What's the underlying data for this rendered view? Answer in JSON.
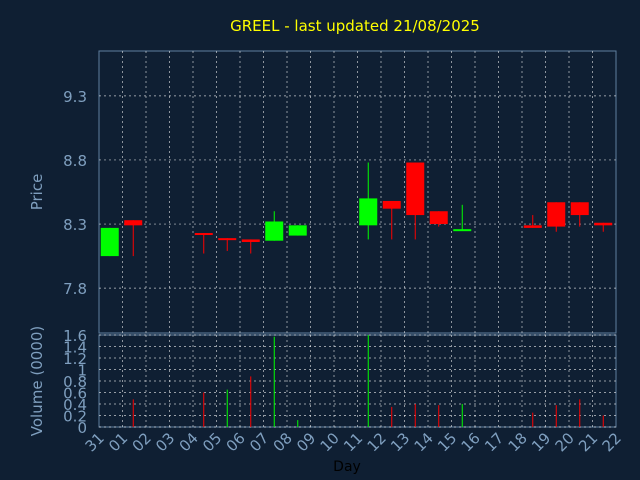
{
  "title": "GREEL - last updated 21/08/2025",
  "colors": {
    "background": "#0f1f33",
    "axis_text": "#7f9fbf",
    "title": "#ffff00",
    "up": "#00ff00",
    "down": "#ff0000",
    "grid": "#ffffff",
    "frame": "#5f7f9f"
  },
  "chart_data": [
    {
      "type": "candlestick",
      "ylabel": "Price",
      "ylim": [
        7.45,
        9.65
      ],
      "yticks": [
        7.8,
        8.3,
        8.8,
        9.3
      ],
      "ytick_labels": [
        "7.8",
        "8.3",
        "8.8",
        "9.3"
      ],
      "grid": true,
      "x_index": [
        0,
        1,
        2,
        3,
        4,
        5,
        6,
        7,
        8,
        9,
        10,
        11,
        12,
        13,
        14,
        15,
        16,
        17,
        18,
        19,
        20,
        21,
        22
      ],
      "candles": [
        {
          "x": 0,
          "open": 8.05,
          "close": 8.27,
          "high": 8.27,
          "low": 8.05
        },
        {
          "x": 1,
          "open": 8.33,
          "close": 8.29,
          "high": 8.33,
          "low": 8.05
        },
        {
          "x": 4,
          "open": 8.23,
          "close": 8.22,
          "high": 8.23,
          "low": 8.07
        },
        {
          "x": 5,
          "open": 8.19,
          "close": 8.18,
          "high": 8.19,
          "low": 8.09
        },
        {
          "x": 6,
          "open": 8.18,
          "close": 8.16,
          "high": 8.18,
          "low": 8.07
        },
        {
          "x": 7,
          "open": 8.17,
          "close": 8.32,
          "high": 8.4,
          "low": 8.17
        },
        {
          "x": 8,
          "open": 8.21,
          "close": 8.29,
          "high": 8.29,
          "low": 8.21
        },
        {
          "x": 11,
          "open": 8.29,
          "close": 8.5,
          "high": 8.78,
          "low": 8.18
        },
        {
          "x": 12,
          "open": 8.48,
          "close": 8.42,
          "high": 8.48,
          "low": 8.18
        },
        {
          "x": 13,
          "open": 8.78,
          "close": 8.37,
          "high": 8.78,
          "low": 8.18
        },
        {
          "x": 14,
          "open": 8.4,
          "close": 8.3,
          "high": 8.4,
          "low": 8.28
        },
        {
          "x": 15,
          "open": 8.25,
          "close": 8.26,
          "high": 8.45,
          "low": 8.25
        },
        {
          "x": 18,
          "open": 8.29,
          "close": 8.27,
          "high": 8.37,
          "low": 8.27
        },
        {
          "x": 19,
          "open": 8.47,
          "close": 8.28,
          "high": 8.47,
          "low": 8.24
        },
        {
          "x": 20,
          "open": 8.47,
          "close": 8.37,
          "high": 8.47,
          "low": 8.28
        },
        {
          "x": 21,
          "open": 8.31,
          "close": 8.29,
          "high": 8.31,
          "low": 8.24
        }
      ]
    },
    {
      "type": "bar",
      "xlabel": "Day",
      "ylabel": "Volume (0000)",
      "ylim": [
        0,
        1.6
      ],
      "yticks": [
        0,
        0.2,
        0.4,
        0.6,
        0.8,
        1,
        1.2,
        1.4,
        1.6
      ],
      "ytick_labels": [
        "0",
        "0.2",
        "0.4",
        "0.6",
        "0.8",
        "1",
        "1.2",
        "1.4",
        "1.6"
      ],
      "grid": true,
      "categories": [
        "31",
        "01",
        "02",
        "03",
        "04",
        "05",
        "06",
        "07",
        "08",
        "09",
        "10",
        "11",
        "12",
        "13",
        "14",
        "15",
        "16",
        "17",
        "18",
        "19",
        "20",
        "21",
        "22"
      ],
      "bars": [
        {
          "x": 1,
          "value": 0.48,
          "direction": "down"
        },
        {
          "x": 4,
          "value": 0.6,
          "direction": "down"
        },
        {
          "x": 5,
          "value": 0.65,
          "direction": "up"
        },
        {
          "x": 6,
          "value": 0.88,
          "direction": "down"
        },
        {
          "x": 7,
          "value": 1.57,
          "direction": "up"
        },
        {
          "x": 8,
          "value": 0.12,
          "direction": "up"
        },
        {
          "x": 11,
          "value": 1.6,
          "direction": "up"
        },
        {
          "x": 12,
          "value": 0.35,
          "direction": "down"
        },
        {
          "x": 13,
          "value": 0.4,
          "direction": "down"
        },
        {
          "x": 14,
          "value": 0.38,
          "direction": "down"
        },
        {
          "x": 15,
          "value": 0.4,
          "direction": "up"
        },
        {
          "x": 18,
          "value": 0.25,
          "direction": "down"
        },
        {
          "x": 19,
          "value": 0.38,
          "direction": "down"
        },
        {
          "x": 20,
          "value": 0.48,
          "direction": "down"
        },
        {
          "x": 21,
          "value": 0.2,
          "direction": "down"
        }
      ]
    }
  ]
}
